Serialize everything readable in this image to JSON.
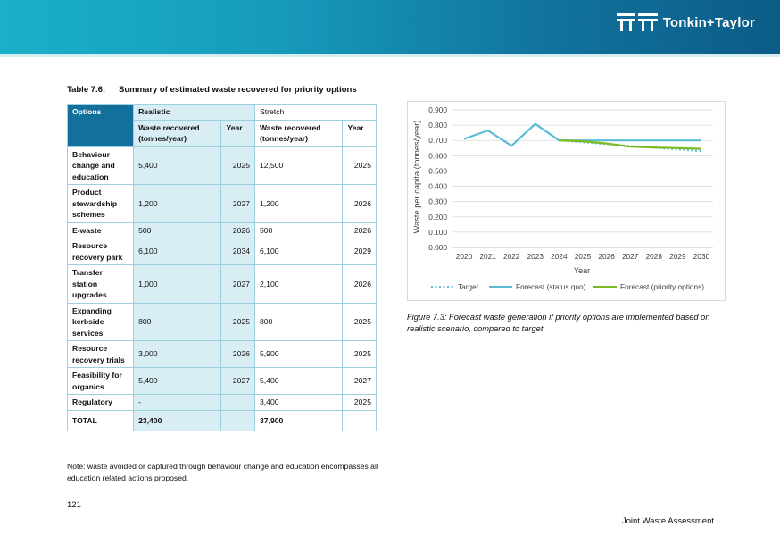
{
  "header": {
    "brand": "Tonkin+Taylor"
  },
  "table": {
    "caption_number": "Table 7.6:",
    "caption_title": "Summary of estimated waste recovered for priority options",
    "col_options": "Options",
    "col_realistic": "Realistic",
    "col_stretch": "Stretch",
    "sub_waste": "Waste recovered (tonnes/year)",
    "sub_year": "Year",
    "rows": [
      {
        "option": "Behaviour change and education",
        "r_value": "5,400",
        "r_year": "2025",
        "s_value": "12,500",
        "s_year": "2025"
      },
      {
        "option": "Product stewardship schemes",
        "r_value": "1,200",
        "r_year": "2027",
        "s_value": "1,200",
        "s_year": "2026"
      },
      {
        "option": "E-waste",
        "r_value": "500",
        "r_year": "2026",
        "s_value": "500",
        "s_year": "2026"
      },
      {
        "option": "Resource recovery park",
        "r_value": "6,100",
        "r_year": "2034",
        "s_value": "6,100",
        "s_year": "2029"
      },
      {
        "option": "Transfer station upgrades",
        "r_value": "1,000",
        "r_year": "2027",
        "s_value": "2,100",
        "s_year": "2026"
      },
      {
        "option": "Expanding kerbside services",
        "r_value": "800",
        "r_year": "2025",
        "s_value": "800",
        "s_year": "2025"
      },
      {
        "option": "Resource recovery trials",
        "r_value": "3,000",
        "r_year": "2026",
        "s_value": "5,900",
        "s_year": "2025"
      },
      {
        "option": "Feasibility for organics",
        "r_value": "5,400",
        "r_year": "2027",
        "s_value": "5,400",
        "s_year": "2027"
      },
      {
        "option": "Regulatory",
        "r_value": "-",
        "r_year": "",
        "s_value": "3,400",
        "s_year": "2025"
      }
    ],
    "total": {
      "label": "TOTAL",
      "realistic": "23,400",
      "stretch": "37,900"
    },
    "note": "Note: waste avoided or captured through behaviour change and education encompasses all education related actions proposed."
  },
  "chart_data": {
    "type": "line",
    "title": "",
    "xlabel": "Year",
    "ylabel": "Waste per capita (tonnes/year)",
    "x": [
      2020,
      2021,
      2022,
      2023,
      2024,
      2025,
      2026,
      2027,
      2028,
      2029,
      2030
    ],
    "ylim": [
      0,
      0.9
    ],
    "yticks": [
      "0.000",
      "0.100",
      "0.200",
      "0.300",
      "0.400",
      "0.500",
      "0.600",
      "0.700",
      "0.800",
      "0.900"
    ],
    "grid": true,
    "legend_position": "bottom",
    "series": [
      {
        "name": "Target",
        "color": "#5bbcd6",
        "style": "dotted",
        "x": [
          2024,
          2025,
          2026,
          2027,
          2028,
          2029,
          2030
        ],
        "values": [
          0.7,
          0.688,
          0.676,
          0.664,
          0.652,
          0.641,
          0.63
        ]
      },
      {
        "name": "Forecast (status quo)",
        "color": "#5bbcd6",
        "style": "solid",
        "x": [
          2020,
          2021,
          2022,
          2023,
          2024,
          2025,
          2026,
          2027,
          2028,
          2029,
          2030
        ],
        "values": [
          0.71,
          0.765,
          0.665,
          0.808,
          0.7,
          0.7,
          0.7,
          0.7,
          0.7,
          0.7,
          0.7
        ]
      },
      {
        "name": "Forecast (priority options)",
        "color": "#7cbb21",
        "style": "solid",
        "x": [
          2024,
          2025,
          2026,
          2027,
          2028,
          2029,
          2030
        ],
        "values": [
          0.7,
          0.695,
          0.68,
          0.66,
          0.654,
          0.65,
          0.645
        ]
      }
    ]
  },
  "figure": {
    "caption": "Figure 7.3: Forecast waste generation if priority options are implemented based on realistic scenario, compared to target"
  },
  "footer": {
    "page_number": "121",
    "doc_title": "Joint Waste Assessment"
  }
}
